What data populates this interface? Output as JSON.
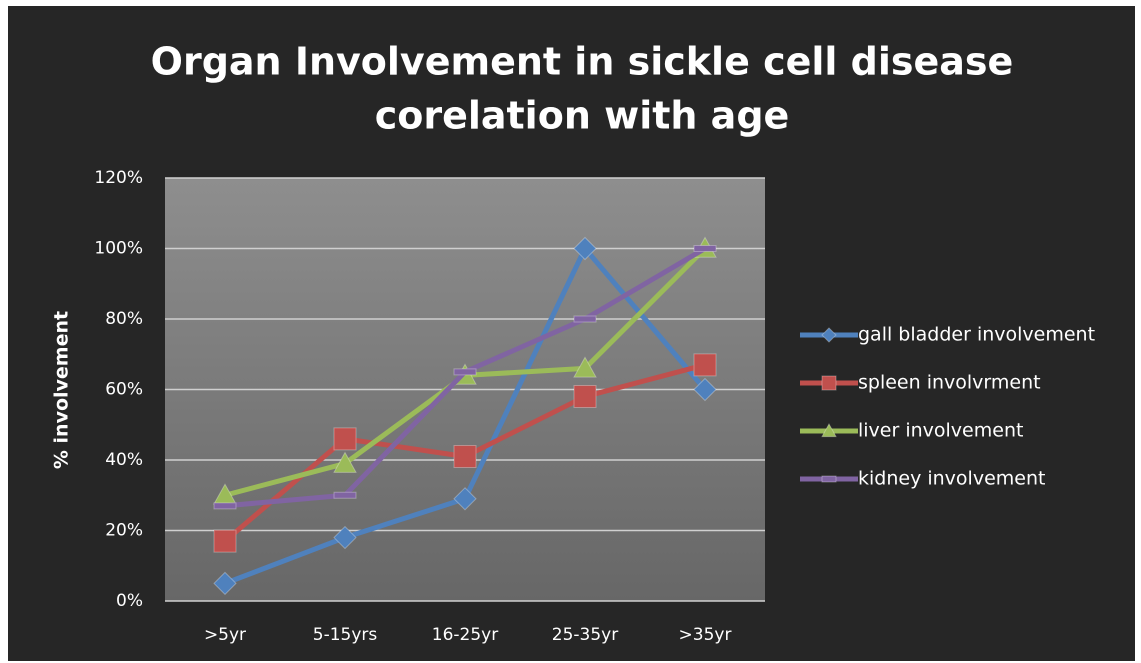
{
  "chart_data": {
    "type": "line",
    "title": [
      "Organ Involvement in sickle cell disease",
      "corelation with age"
    ],
    "y_label": "% involvement",
    "categories": [
      ">5yr",
      "5-15yrs",
      "16-25yr",
      "25-35yr",
      ">35yr"
    ],
    "series": [
      {
        "name": "gall bladder involvement",
        "color": "#4f81bd",
        "marker": "diamond",
        "values": [
          5,
          18,
          29,
          100,
          60
        ]
      },
      {
        "name": "spleen involvrment",
        "color": "#c0504d",
        "marker": "square",
        "values": [
          17,
          46,
          41,
          58,
          67
        ]
      },
      {
        "name": "liver involvement",
        "color": "#9bbb59",
        "marker": "triangle",
        "values": [
          30,
          39,
          64,
          66,
          100
        ]
      },
      {
        "name": "kidney involvement",
        "color": "#8064a2",
        "marker": "cross",
        "values": [
          27,
          30,
          65,
          80,
          100
        ]
      }
    ],
    "ylim": [
      0,
      120
    ],
    "yticks": [
      {
        "value": 0,
        "label": "0%"
      },
      {
        "value": 20,
        "label": "20%"
      },
      {
        "value": 40,
        "label": "40%"
      },
      {
        "value": 60,
        "label": "60%"
      },
      {
        "value": 80,
        "label": "80%"
      },
      {
        "value": 100,
        "label": "100%"
      },
      {
        "value": 120,
        "label": "120%"
      }
    ],
    "grid": true,
    "legend": "right"
  }
}
